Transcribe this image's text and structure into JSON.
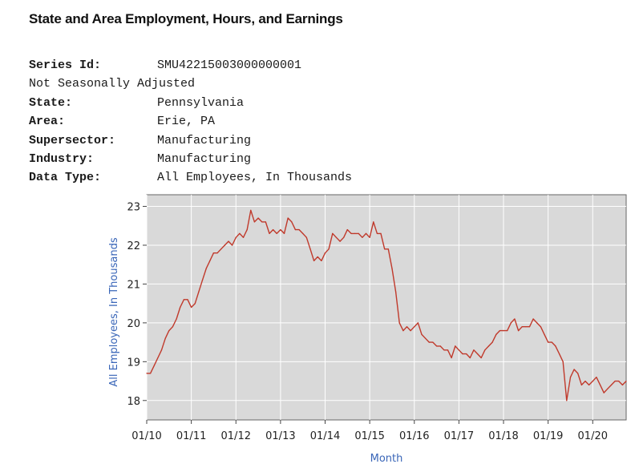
{
  "page": {
    "title": "State and Area Employment, Hours, and Earnings"
  },
  "meta": [
    {
      "label": "Series Id:",
      "value": "SMU42215003000000001"
    },
    {
      "label": "Not Seasonally Adjusted",
      "value": ""
    },
    {
      "label": "State:",
      "value": "Pennsylvania"
    },
    {
      "label": "Area:",
      "value": "Erie, PA"
    },
    {
      "label": "Supersector:",
      "value": "Manufacturing"
    },
    {
      "label": "Industry:",
      "value": "Manufacturing"
    },
    {
      "label": "Data Type:",
      "value": "All Employees, In Thousands"
    }
  ],
  "colors": {
    "line": "#c0392b",
    "plot_background": "#d9d9d9",
    "grid": "#ffffff",
    "axis_title": "#3a66b8"
  },
  "chart_data": {
    "type": "line",
    "title": "",
    "xlabel": "Month",
    "ylabel": "All Employees, In Thousands",
    "xlim": [
      "2010-01",
      "2020-10"
    ],
    "ylim": [
      17.5,
      23.3
    ],
    "grid": true,
    "legend": "none",
    "xticks": [
      "01/10",
      "01/11",
      "01/12",
      "01/13",
      "01/14",
      "01/15",
      "01/16",
      "01/17",
      "01/18",
      "01/19",
      "01/20"
    ],
    "yticks": [
      18,
      19,
      20,
      21,
      22,
      23
    ],
    "series": [
      {
        "x": [
          "2010-01",
          "2010-02",
          "2010-03",
          "2010-04",
          "2010-05",
          "2010-06",
          "2010-07",
          "2010-08",
          "2010-09",
          "2010-10",
          "2010-11",
          "2010-12",
          "2011-01",
          "2011-02",
          "2011-03",
          "2011-04",
          "2011-05",
          "2011-06",
          "2011-07",
          "2011-08",
          "2011-09",
          "2011-10",
          "2011-11",
          "2011-12",
          "2012-01",
          "2012-02",
          "2012-03",
          "2012-04",
          "2012-05",
          "2012-06",
          "2012-07",
          "2012-08",
          "2012-09",
          "2012-10",
          "2012-11",
          "2012-12",
          "2013-01",
          "2013-02",
          "2013-03",
          "2013-04",
          "2013-05",
          "2013-06",
          "2013-07",
          "2013-08",
          "2013-09",
          "2013-10",
          "2013-11",
          "2013-12",
          "2014-01",
          "2014-02",
          "2014-03",
          "2014-04",
          "2014-05",
          "2014-06",
          "2014-07",
          "2014-08",
          "2014-09",
          "2014-10",
          "2014-11",
          "2014-12",
          "2015-01",
          "2015-02",
          "2015-03",
          "2015-04",
          "2015-05",
          "2015-06",
          "2015-07",
          "2015-08",
          "2015-09",
          "2015-10",
          "2015-11",
          "2015-12",
          "2016-01",
          "2016-02",
          "2016-03",
          "2016-04",
          "2016-05",
          "2016-06",
          "2016-07",
          "2016-08",
          "2016-09",
          "2016-10",
          "2016-11",
          "2016-12",
          "2017-01",
          "2017-02",
          "2017-03",
          "2017-04",
          "2017-05",
          "2017-06",
          "2017-07",
          "2017-08",
          "2017-09",
          "2017-10",
          "2017-11",
          "2017-12",
          "2018-01",
          "2018-02",
          "2018-03",
          "2018-04",
          "2018-05",
          "2018-06",
          "2018-07",
          "2018-08",
          "2018-09",
          "2018-10",
          "2018-11",
          "2018-12",
          "2019-01",
          "2019-02",
          "2019-03",
          "2019-04",
          "2019-05",
          "2019-06",
          "2019-07",
          "2019-08",
          "2019-09",
          "2019-10",
          "2019-11",
          "2019-12",
          "2020-01",
          "2020-02",
          "2020-03",
          "2020-04",
          "2020-05",
          "2020-06",
          "2020-07",
          "2020-08",
          "2020-09",
          "2020-10"
        ],
        "values": [
          18.7,
          18.7,
          18.9,
          19.1,
          19.3,
          19.6,
          19.8,
          19.9,
          20.1,
          20.4,
          20.6,
          20.6,
          20.4,
          20.5,
          20.8,
          21.1,
          21.4,
          21.6,
          21.8,
          21.8,
          21.9,
          22.0,
          22.1,
          22.0,
          22.2,
          22.3,
          22.2,
          22.4,
          22.9,
          22.6,
          22.7,
          22.6,
          22.6,
          22.3,
          22.4,
          22.3,
          22.4,
          22.3,
          22.7,
          22.6,
          22.4,
          22.4,
          22.3,
          22.2,
          21.9,
          21.6,
          21.7,
          21.6,
          21.8,
          21.9,
          22.3,
          22.2,
          22.1,
          22.2,
          22.4,
          22.3,
          22.3,
          22.3,
          22.2,
          22.3,
          22.2,
          22.6,
          22.3,
          22.3,
          21.9,
          21.9,
          21.4,
          20.8,
          20.0,
          19.8,
          19.9,
          19.8,
          19.9,
          20.0,
          19.7,
          19.6,
          19.5,
          19.5,
          19.4,
          19.4,
          19.3,
          19.3,
          19.1,
          19.4,
          19.3,
          19.2,
          19.2,
          19.1,
          19.3,
          19.2,
          19.1,
          19.3,
          19.4,
          19.5,
          19.7,
          19.8,
          19.8,
          19.8,
          20.0,
          20.1,
          19.8,
          19.9,
          19.9,
          19.9,
          20.1,
          20.0,
          19.9,
          19.7,
          19.5,
          19.5,
          19.4,
          19.2,
          19.0,
          18.0,
          18.6,
          18.8,
          18.7,
          18.4,
          18.5,
          18.4,
          18.5,
          18.6,
          18.4,
          18.2,
          18.3,
          18.4,
          18.5,
          18.5,
          18.4,
          18.5
        ]
      }
    ]
  }
}
